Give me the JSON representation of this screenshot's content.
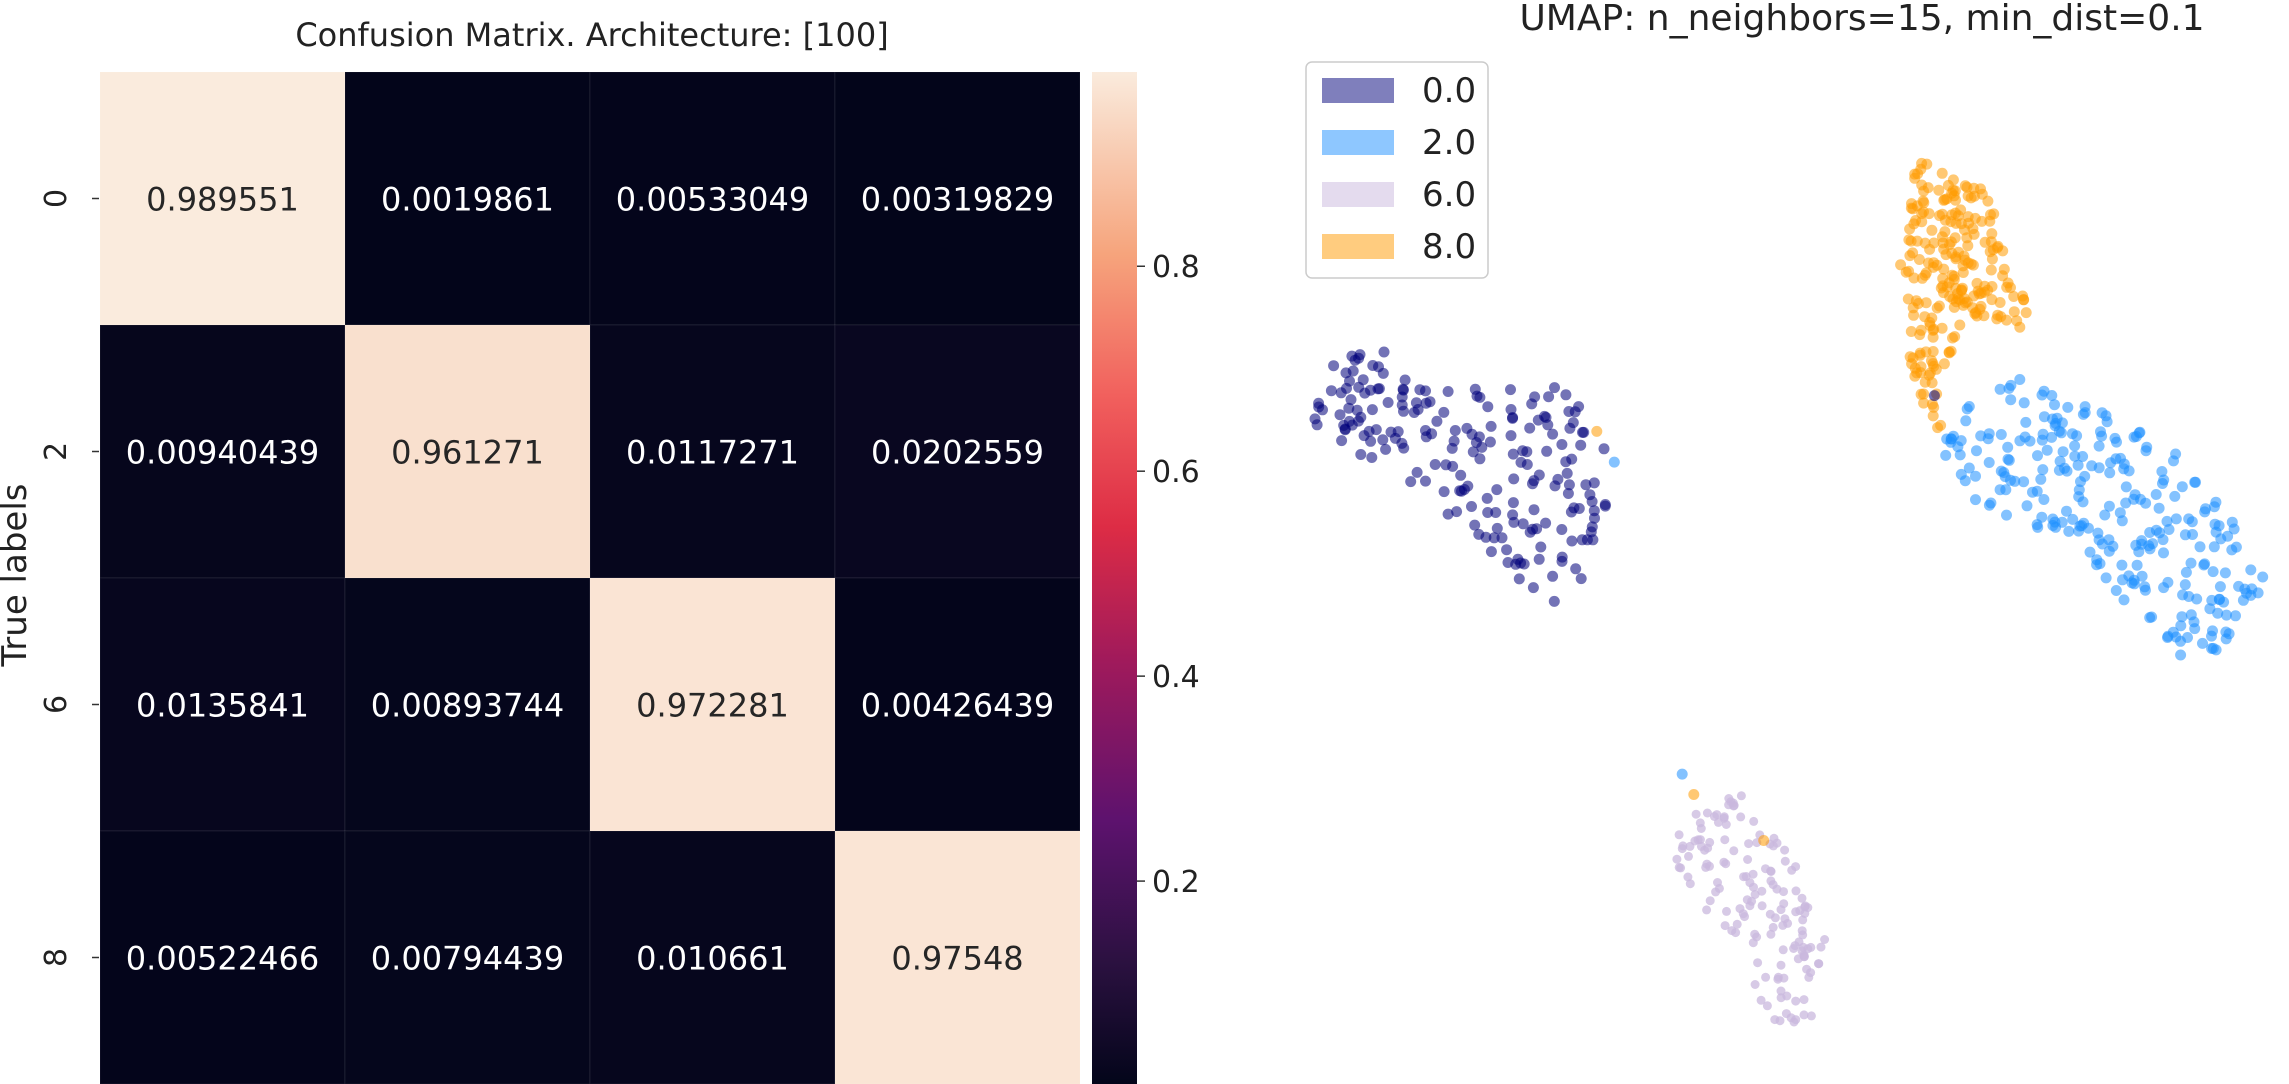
{
  "chart_data": [
    {
      "type": "heatmap",
      "title": "Confusion Matrix. Architecture: [100]",
      "ylabel": "True labels",
      "xlabel": "",
      "row_labels": [
        "0",
        "2",
        "6",
        "8"
      ],
      "col_labels": [],
      "cells": [
        [
          "0.989551",
          "0.0019861",
          "0.00533049",
          "0.00319829"
        ],
        [
          "0.00940439",
          "0.961271",
          "0.0117271",
          "0.0202559"
        ],
        [
          "0.0135841",
          "0.00893744",
          "0.972281",
          "0.00426439"
        ],
        [
          "0.00522466",
          "0.00794439",
          "0.010661",
          "0.97548"
        ]
      ],
      "colorbar": {
        "ticks": [
          "0.2",
          "0.4",
          "0.6",
          "0.8"
        ],
        "range": [
          0.0019861,
          0.989551
        ],
        "colormap": "rocket"
      },
      "grid": false
    },
    {
      "type": "scatter",
      "title": "UMAP: n_neighbors=15, min_dist=0.1",
      "xlabel": "",
      "ylabel": "",
      "axes_visible": false,
      "legend_position": "top-left",
      "legend": [
        {
          "label": "0.0",
          "color": "#00007a"
        },
        {
          "label": "2.0",
          "color": "#1e90ff"
        },
        {
          "label": "6.0",
          "color": "#c9b8dd"
        },
        {
          "label": "8.0",
          "color": "#ff9a00"
        }
      ],
      "clusters": [
        {
          "label": "0.0",
          "count": 200,
          "polygon": [
            [
              0.5,
              26.2
            ],
            [
              2.8,
              27.3
            ],
            [
              7.5,
              26.2
            ],
            [
              10.0,
              25.8
            ],
            [
              13.3,
              25.6
            ],
            [
              15.6,
              23.8
            ],
            [
              16.4,
              21.4
            ],
            [
              15.0,
              18.9
            ],
            [
              13.6,
              16.5
            ],
            [
              11.0,
              18.2
            ],
            [
              7.0,
              21.0
            ],
            [
              3.1,
              22.8
            ],
            [
              0.8,
              24.1
            ]
          ]
        },
        {
          "label": "2.0",
          "count": 260,
          "polygon": [
            [
              33.0,
              24.2
            ],
            [
              36.9,
              25.9
            ],
            [
              42.6,
              24.3
            ],
            [
              46.2,
              22.5
            ],
            [
              49.9,
              18.2
            ],
            [
              48.5,
              15.7
            ],
            [
              46.0,
              14.6
            ],
            [
              42.9,
              16.6
            ],
            [
              39.8,
              19.4
            ],
            [
              36.4,
              20.5
            ],
            [
              33.5,
              21.5
            ]
          ]
        },
        {
          "label": "6.0",
          "count": 150,
          "polygon": [
            [
              20.0,
              9.6
            ],
            [
              22.9,
              9.6
            ],
            [
              25.6,
              7.3
            ],
            [
              27.2,
              3.8
            ],
            [
              26.5,
              0.8
            ],
            [
              24.3,
              0.5
            ],
            [
              22.5,
              3.9
            ],
            [
              20.3,
              5.4
            ],
            [
              19.1,
              7.3
            ]
          ]
        },
        {
          "label": "8.0",
          "count": 230,
          "polygon": [
            [
              31.7,
              34.6
            ],
            [
              33.5,
              33.9
            ],
            [
              35.5,
              33.2
            ],
            [
              36.8,
              29.2
            ],
            [
              38.0,
              29.7
            ],
            [
              37.5,
              27.8
            ],
            [
              34.3,
              28.4
            ],
            [
              32.9,
              25.5
            ],
            [
              33.3,
              23.6
            ],
            [
              32.6,
              24.0
            ],
            [
              31.5,
              26.1
            ],
            [
              31.3,
              27.1
            ],
            [
              30.9,
              30.3
            ],
            [
              31.4,
              33.0
            ]
          ]
        }
      ],
      "outliers": [
        {
          "label": "0.0",
          "x": [
            32.7
          ],
          "y": [
            25.2
          ]
        },
        {
          "label": "2.0",
          "x": [
            19.7,
            16.2
          ],
          "y": [
            10.4,
            22.6
          ]
        },
        {
          "label": "8.0",
          "x": [
            20.3,
            23.9,
            15.3
          ],
          "y": [
            9.6,
            7.8,
            23.8
          ]
        }
      ]
    }
  ]
}
